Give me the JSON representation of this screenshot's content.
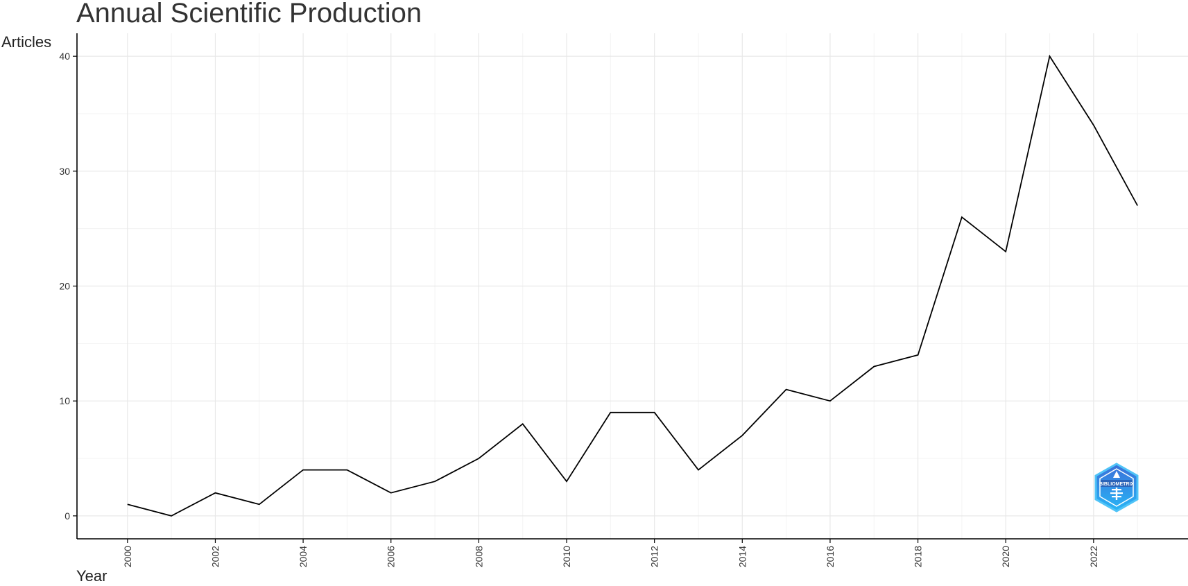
{
  "chart_data": {
    "type": "line",
    "title": "Annual Scientific Production",
    "xlabel": "Year",
    "ylabel": "Articles",
    "x": [
      2000,
      2001,
      2002,
      2003,
      2004,
      2005,
      2006,
      2007,
      2008,
      2009,
      2010,
      2011,
      2012,
      2013,
      2014,
      2015,
      2016,
      2017,
      2018,
      2019,
      2020,
      2021,
      2022,
      2023
    ],
    "series": [
      {
        "values": [
          1,
          0,
          2,
          1,
          4,
          4,
          2,
          3,
          5,
          8,
          3,
          9,
          9,
          4,
          7,
          11,
          10,
          13,
          14,
          26,
          23,
          40,
          34,
          27
        ]
      }
    ],
    "xlim": [
      1998.85,
      2024.15
    ],
    "ylim": [
      -2,
      42
    ],
    "xticks": [
      "2000",
      "2002",
      "2004",
      "2006",
      "2008",
      "2010",
      "2012",
      "2014",
      "2016",
      "2018",
      "2020",
      "2022"
    ],
    "yticks": [
      "0",
      "10",
      "20",
      "30",
      "40"
    ],
    "grid": true,
    "line_color": "#000000",
    "logo": {
      "text": "BIBLIOMETRIX",
      "colors": [
        "#3a6fd8",
        "#29b6f6"
      ]
    }
  }
}
